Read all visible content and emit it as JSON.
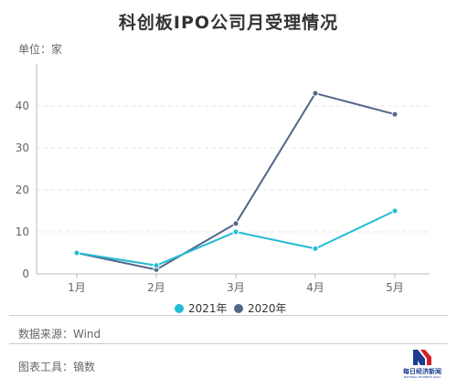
{
  "unit_label": "单位：家",
  "source": "数据来源：Wind",
  "tool": "图表工具：镝数",
  "logo": {
    "name": "每日经济新闻",
    "subtitle": "NATIONAL BUSINESS DAILY"
  },
  "colors": {
    "series_2021": "#22bcd4",
    "series_2020": "#536689",
    "axis": "#bbbbbb",
    "grid": "#e6e6e6",
    "text": "#666666",
    "logo_red": "#d4202a",
    "logo_blue": "#1a3d8f"
  },
  "chart_data": {
    "type": "line",
    "title": "科创板IPO公司月受理情况",
    "categories": [
      "1月",
      "2月",
      "3月",
      "4月",
      "5月"
    ],
    "series": [
      {
        "name": "2021年",
        "values": [
          5,
          2,
          10,
          6,
          15
        ]
      },
      {
        "name": "2020年",
        "values": [
          5,
          1,
          12,
          43,
          38
        ]
      }
    ],
    "ylim": [
      0,
      50
    ],
    "yticks": [
      "0",
      "10",
      "20",
      "30",
      "40"
    ],
    "grid": true,
    "legend_position": "bottom-center"
  }
}
